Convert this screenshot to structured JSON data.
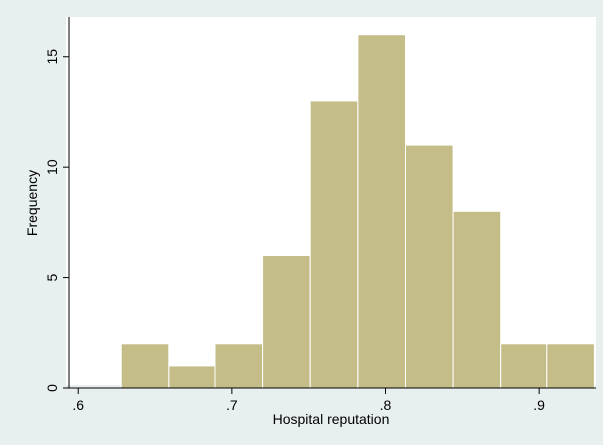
{
  "chart_data": {
    "type": "bar",
    "subtype": "histogram",
    "xlabel": "Hospital reputation",
    "ylabel": "Frequency",
    "xlim": [
      0.594,
      0.937
    ],
    "ylim": [
      0,
      16.8
    ],
    "x_ticks": [
      {
        "value": 0.6,
        "label": ".6"
      },
      {
        "value": 0.7,
        "label": ".7"
      },
      {
        "value": 0.8,
        "label": ".8"
      },
      {
        "value": 0.9,
        "label": ".9"
      }
    ],
    "y_ticks": [
      {
        "value": 0,
        "label": "0"
      },
      {
        "value": 5,
        "label": "5"
      },
      {
        "value": 10,
        "label": "10"
      },
      {
        "value": 15,
        "label": "15"
      }
    ],
    "bins": [
      {
        "start": 0.628,
        "end": 0.659,
        "count": 2
      },
      {
        "start": 0.659,
        "end": 0.689,
        "count": 1
      },
      {
        "start": 0.689,
        "end": 0.72,
        "count": 2
      },
      {
        "start": 0.72,
        "end": 0.751,
        "count": 6
      },
      {
        "start": 0.751,
        "end": 0.782,
        "count": 13
      },
      {
        "start": 0.782,
        "end": 0.813,
        "count": 16
      },
      {
        "start": 0.813,
        "end": 0.844,
        "count": 11
      },
      {
        "start": 0.844,
        "end": 0.875,
        "count": 8
      },
      {
        "start": 0.875,
        "end": 0.905,
        "count": 2
      },
      {
        "start": 0.905,
        "end": 0.936,
        "count": 2
      }
    ],
    "grid": false,
    "legend": "none",
    "colors": {
      "background": "#e8efef",
      "plot_background": "#ffffff",
      "bar_fill": "#c4bd88",
      "bar_stroke": "#ffffff",
      "axis": "#000000"
    }
  }
}
